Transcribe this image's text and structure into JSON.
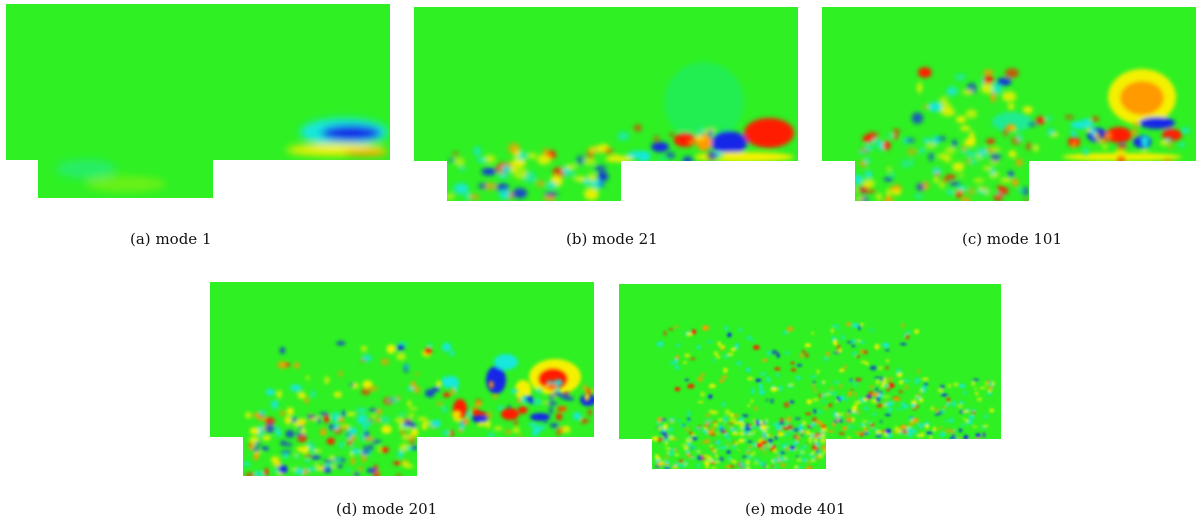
{
  "figure": {
    "captions": [
      {
        "label": "(a)",
        "text": "mode 1"
      },
      {
        "label": "(b)",
        "text": "mode 21"
      },
      {
        "label": "(c)",
        "text": "mode 101"
      },
      {
        "label": "(d)",
        "text": "mode 201"
      },
      {
        "label": "(e)",
        "text": "mode 401"
      }
    ]
  },
  "colors": {
    "background_field": "#2ef023",
    "red": "#ff1a00",
    "orange": "#ff9a00",
    "yellow": "#f4f100",
    "cyan": "#14e8dc",
    "blue": "#1227e8"
  }
}
